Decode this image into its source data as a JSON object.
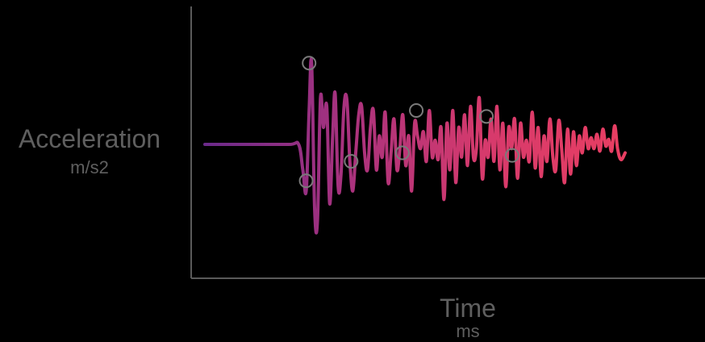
{
  "chart_data": {
    "type": "line",
    "xlabel": "Time",
    "xunit": "ms",
    "ylabel": "Acceleration",
    "yunit": "m/s2",
    "grid": false,
    "legend": "none",
    "xlim": [
      0,
      100
    ],
    "ylim": [
      -100,
      100
    ],
    "gradient_colors": [
      "#6b2a8a",
      "#a8327e",
      "#d63a6c",
      "#e83e62"
    ],
    "axis_color": "#5a5a5a",
    "marker_color": "#7a7a7a",
    "series": [
      {
        "x": [
          0,
          10,
          20,
          22.3,
          23.3,
          24.1,
          24.8,
          25.4,
          26.1,
          26.8,
          27.5,
          28.2,
          29.0,
          29.7,
          30.4,
          31.0,
          31.7,
          32.4,
          33.1,
          33.8,
          34.5,
          35.2,
          35.9,
          36.6,
          37.3,
          38.0,
          38.7,
          39.4,
          40.1,
          40.8,
          41.5,
          42.2,
          42.9,
          43.6,
          44.3,
          45.0,
          45.7,
          46.4,
          47.1,
          47.8,
          48.5,
          49.2,
          49.9,
          50.6,
          51.3,
          52.0,
          52.7,
          53.4,
          54.1,
          54.8,
          55.5,
          56.2,
          56.9,
          57.6,
          58.3,
          59.0,
          59.7,
          60.4,
          61.1,
          61.8,
          62.5,
          63.2,
          63.9,
          64.6,
          65.3,
          66.0,
          66.7,
          67.4,
          68.1,
          68.8,
          69.5,
          70.2,
          70.9,
          71.6,
          72.3,
          73.0,
          73.7,
          74.4,
          75.1,
          75.8,
          76.5,
          77.2,
          77.9,
          78.6,
          79.3,
          80.0,
          80.7,
          81.4,
          82.1,
          82.8,
          83.5,
          84.2,
          84.9,
          85.6,
          86.3,
          87.0,
          87.7,
          88.4,
          89.1,
          89.8,
          90.5,
          91.2,
          91.9,
          92.6,
          93.3,
          94.0,
          94.7,
          95.4,
          96.1,
          96.8,
          97.5,
          98.2,
          99.0,
          100
        ],
        "y": [
          0,
          0,
          0,
          0,
          -30,
          -55,
          40,
          96,
          -75,
          -90,
          55,
          20,
          45,
          -70,
          10,
          60,
          -50,
          -35,
          45,
          52,
          -20,
          -55,
          -10,
          35,
          45,
          -10,
          -30,
          20,
          40,
          -30,
          10,
          -15,
          38,
          -45,
          -10,
          30,
          -30,
          -5,
          35,
          -25,
          10,
          -55,
          25,
          10,
          -5,
          15,
          -20,
          40,
          -15,
          5,
          -18,
          20,
          -65,
          25,
          -30,
          40,
          -45,
          20,
          -15,
          35,
          -25,
          45,
          -15,
          -5,
          55,
          -40,
          5,
          -15,
          30,
          -20,
          45,
          -30,
          25,
          -50,
          20,
          -5,
          30,
          -40,
          25,
          -15,
          5,
          -20,
          38,
          -28,
          20,
          -38,
          10,
          -20,
          30,
          -15,
          -30,
          28,
          -5,
          -45,
          18,
          -35,
          15,
          -25,
          10,
          -10,
          20,
          -5,
          8,
          -5,
          12,
          -8,
          18,
          -2,
          6,
          -8,
          22,
          -5,
          -18,
          -10
        ]
      }
    ],
    "highlighted_points": [
      {
        "x": 24.8,
        "y": 96
      },
      {
        "x": 24.1,
        "y": -43
      },
      {
        "x": 34.8,
        "y": -20
      },
      {
        "x": 47.0,
        "y": -10
      },
      {
        "x": 50.3,
        "y": 40
      },
      {
        "x": 67.0,
        "y": 33
      },
      {
        "x": 73.1,
        "y": -13
      }
    ]
  }
}
